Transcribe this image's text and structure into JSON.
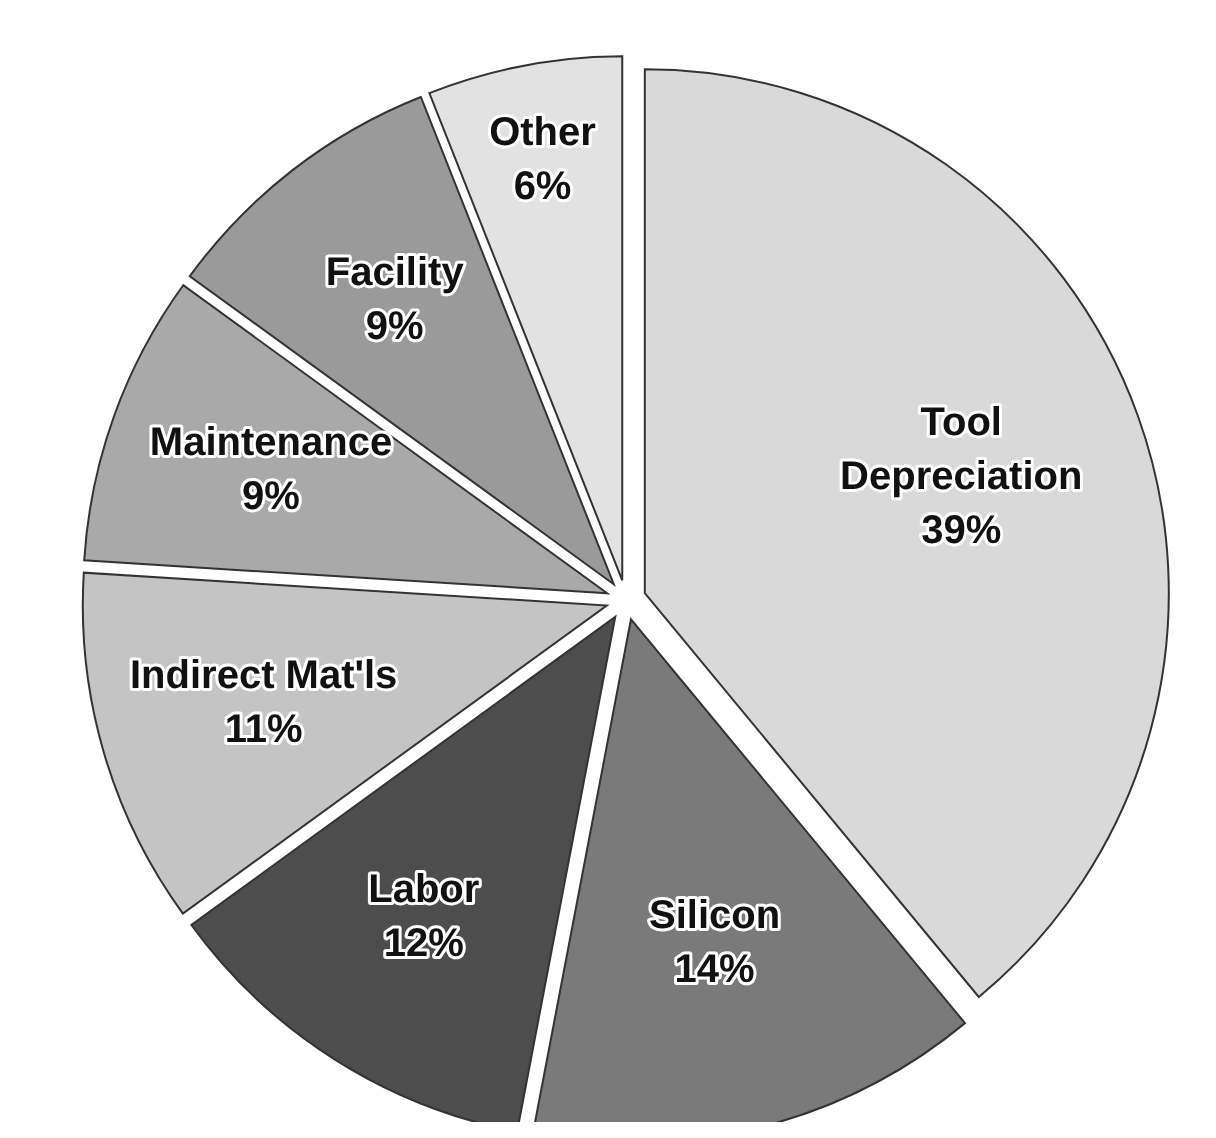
{
  "chart_data": {
    "type": "pie",
    "categories": [
      "Tool Depreciation",
      "Silicon",
      "Labor",
      "Indirect Mat'ls",
      "Maintenance",
      "Facility",
      "Other"
    ],
    "values": [
      39,
      14,
      12,
      11,
      9,
      9,
      6
    ],
    "colors": [
      "#d9d9d9",
      "#7a7a7a",
      "#4d4d4d",
      "#c4c4c4",
      "#a9a9a9",
      "#9a9a9a",
      "#e2e2e2"
    ],
    "value_labels": [
      "39%",
      "14%",
      "12%",
      "11%",
      "9%",
      "9%",
      "6%"
    ]
  }
}
